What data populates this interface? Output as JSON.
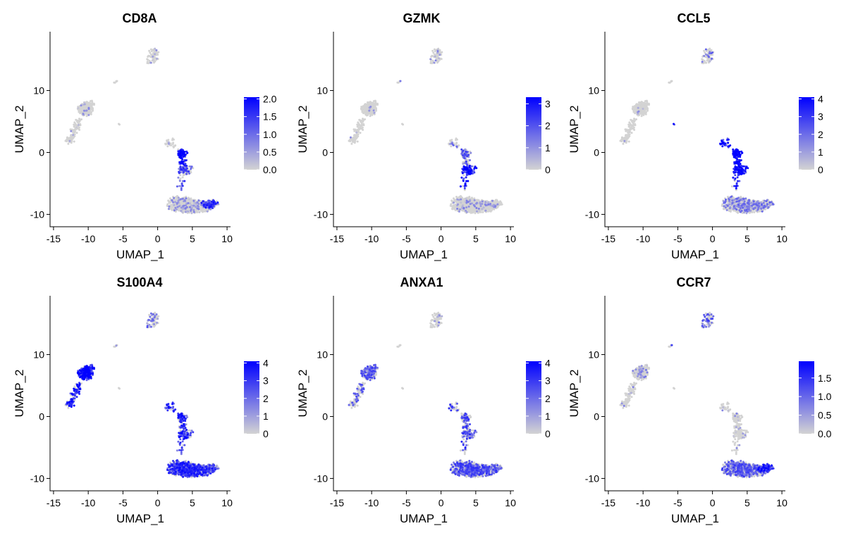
{
  "chart_data": [
    {
      "type": "scatter",
      "title": "CD8A",
      "xlabel": "UMAP_1",
      "ylabel": "UMAP_2",
      "xlim": [
        -15.5,
        10.5
      ],
      "ylim": [
        -12,
        19.5
      ],
      "xticks": [
        -15,
        -10,
        -5,
        0,
        5,
        10
      ],
      "yticks": [
        -10,
        0,
        10
      ],
      "grid": false,
      "legend": {
        "placement": "right",
        "ticks": [
          "0.0",
          "0.5",
          "1.0",
          "1.5",
          "2.0"
        ],
        "range": [
          0,
          2.05
        ]
      },
      "colors": {
        "low": "#d3d3d3",
        "high": "#0000ff"
      },
      "expression": {
        "island_top": 0.05,
        "small_dot": 0.0,
        "left_cluster": 0.05,
        "left_tail": 0.0,
        "mid_upper": 0.1,
        "mid_column": 0.75,
        "mid_lower": 0.45,
        "bottom_main": 0.08,
        "bottom_right_edge": 0.55
      }
    },
    {
      "type": "scatter",
      "title": "GZMK",
      "xlabel": "UMAP_1",
      "ylabel": "UMAP_2",
      "xlim": [
        -15.5,
        10.5
      ],
      "ylim": [
        -12,
        19.5
      ],
      "xticks": [
        -15,
        -10,
        -5,
        0,
        5,
        10
      ],
      "yticks": [
        -10,
        0,
        10
      ],
      "grid": false,
      "legend": {
        "placement": "right",
        "ticks": [
          "0",
          "1",
          "2",
          "3"
        ],
        "range": [
          0,
          3.3
        ]
      },
      "colors": {
        "low": "#d3d3d3",
        "high": "#0000ff"
      },
      "expression": {
        "island_top": 0.08,
        "small_dot": 0.0,
        "left_cluster": 0.0,
        "left_tail": 0.0,
        "mid_upper": 0.25,
        "mid_column": 0.35,
        "mid_lower": 0.75,
        "bottom_main": 0.07,
        "bottom_right_edge": 0.08
      }
    },
    {
      "type": "scatter",
      "title": "CCL5",
      "xlabel": "UMAP_1",
      "ylabel": "UMAP_2",
      "xlim": [
        -15.5,
        10.5
      ],
      "ylim": [
        -12,
        19.5
      ],
      "xticks": [
        -15,
        -10,
        -5,
        0,
        5,
        10
      ],
      "yticks": [
        -10,
        0,
        10
      ],
      "grid": false,
      "legend": {
        "placement": "right",
        "ticks": [
          "0",
          "1",
          "2",
          "3",
          "4"
        ],
        "range": [
          0,
          4.1
        ]
      },
      "colors": {
        "low": "#d3d3d3",
        "high": "#0000ff"
      },
      "expression": {
        "island_top": 0.2,
        "small_dot": 0.9,
        "left_cluster": 0.02,
        "left_tail": 0.0,
        "mid_upper": 0.75,
        "mid_column": 0.85,
        "mid_lower": 0.85,
        "bottom_main": 0.2,
        "bottom_right_edge": 0.2
      }
    },
    {
      "type": "scatter",
      "title": "S100A4",
      "xlabel": "UMAP_1",
      "ylabel": "UMAP_2",
      "xlim": [
        -15.5,
        10.5
      ],
      "ylim": [
        -12,
        19.5
      ],
      "xticks": [
        -15,
        -10,
        -5,
        0,
        5,
        10
      ],
      "yticks": [
        -10,
        0,
        10
      ],
      "grid": false,
      "legend": {
        "placement": "right",
        "ticks": [
          "0",
          "1",
          "2",
          "3",
          "4"
        ],
        "range": [
          0,
          4.1
        ]
      },
      "colors": {
        "low": "#d3d3d3",
        "high": "#0000ff"
      },
      "expression": {
        "island_top": 0.25,
        "small_dot": 0.0,
        "left_cluster": 0.75,
        "left_tail": 0.7,
        "mid_upper": 0.65,
        "mid_column": 0.6,
        "mid_lower": 0.6,
        "bottom_main": 0.55,
        "bottom_right_edge": 0.4
      }
    },
    {
      "type": "scatter",
      "title": "ANXA1",
      "xlabel": "UMAP_1",
      "ylabel": "UMAP_2",
      "xlim": [
        -15.5,
        10.5
      ],
      "ylim": [
        -12,
        19.5
      ],
      "xticks": [
        -15,
        -10,
        -5,
        0,
        5,
        10
      ],
      "yticks": [
        -10,
        0,
        10
      ],
      "grid": false,
      "legend": {
        "placement": "right",
        "ticks": [
          "0",
          "1",
          "2",
          "3",
          "4"
        ],
        "range": [
          0,
          4.1
        ]
      },
      "colors": {
        "low": "#d3d3d3",
        "high": "#0000ff"
      },
      "expression": {
        "island_top": 0.1,
        "small_dot": 0.0,
        "left_cluster": 0.35,
        "left_tail": 0.3,
        "mid_upper": 0.45,
        "mid_column": 0.4,
        "mid_lower": 0.45,
        "bottom_main": 0.4,
        "bottom_right_edge": 0.3
      }
    },
    {
      "type": "scatter",
      "title": "CCR7",
      "xlabel": "UMAP_1",
      "ylabel": "UMAP_2",
      "xlim": [
        -15.5,
        10.5
      ],
      "ylim": [
        -12,
        19.5
      ],
      "xticks": [
        -15,
        -10,
        -5,
        0,
        5,
        10
      ],
      "yticks": [
        -10,
        0,
        10
      ],
      "grid": false,
      "legend": {
        "placement": "right",
        "ticks": [
          "0.0",
          "0.5",
          "1.0",
          "1.5"
        ],
        "range": [
          0,
          1.95
        ]
      },
      "colors": {
        "low": "#d3d3d3",
        "high": "#0000ff"
      },
      "expression": {
        "island_top": 0.35,
        "small_dot": 0.0,
        "left_cluster": 0.1,
        "left_tail": 0.05,
        "mid_upper": 0.05,
        "mid_column": 0.05,
        "mid_lower": 0.05,
        "bottom_main": 0.35,
        "bottom_right_edge": 0.6
      }
    }
  ]
}
